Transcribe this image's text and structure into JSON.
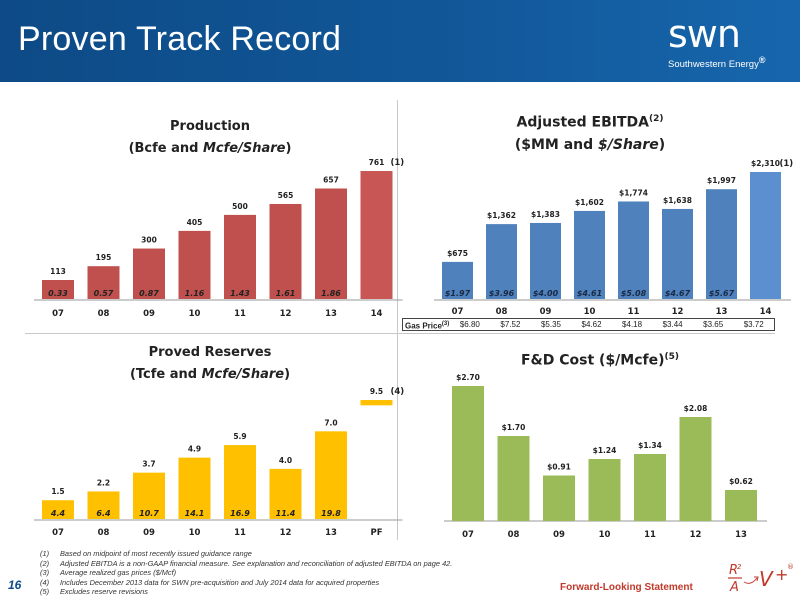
{
  "header": {
    "title": "Proven Track Record"
  },
  "logo": {
    "mark": "swn",
    "sub": "Southwestern Energy",
    "reg": "®"
  },
  "charts": {
    "production": {
      "title_l1": "Production",
      "title_l2_pre": "(Bcfe and ",
      "title_l2_em": "Mcfe/Share",
      "title_l2_post": ")"
    },
    "ebitda": {
      "title_l1": "Adjusted EBITDA",
      "title_l1_sup": "(2)",
      "title_l2_pre": "($MM and ",
      "title_l2_em": "$/Share",
      "title_l2_post": ")"
    },
    "reserves": {
      "title_l1": "Proved Reserves",
      "title_l2_pre": "(Tcfe and ",
      "title_l2_em": "Mcfe/Share",
      "title_l2_post": ")"
    },
    "fd": {
      "title": "F&D Cost ($/Mcfe)",
      "title_sup": "(5)"
    }
  },
  "gas_price": {
    "label": "Gas Price",
    "label_sup": "(3)",
    "values": [
      "$6.80",
      "$7.52",
      "$5.35",
      "$4.62",
      "$4.18",
      "$3.44",
      "$3.65",
      "$3.72"
    ]
  },
  "footnotes": [
    {
      "num": "(1)",
      "text": "Based on midpoint of most recently issued guidance range"
    },
    {
      "num": "(2)",
      "text": "Adjusted EBITDA is a non-GAAP financial measure. See explanation and reconciliation of adjusted EBITDA on page 42."
    },
    {
      "num": "(3)",
      "text": "Average realized gas prices ($/Mcf)"
    },
    {
      "num": "(4)",
      "text": "Includes December 2013 data for SWN pre-acquisition and July 2014 data for acquired properties"
    },
    {
      "num": "(5)",
      "text": "Excludes reserve revisions"
    }
  ],
  "page_number": "16",
  "forward_looking": "Forward-Looking Statement",
  "chart_data": [
    {
      "id": "production",
      "type": "bar",
      "title": "Production (Bcfe and Mcfe/Share)",
      "categories": [
        "07",
        "08",
        "09",
        "10",
        "11",
        "12",
        "13",
        "14"
      ],
      "values": [
        113,
        195,
        300,
        405,
        500,
        565,
        657,
        761
      ],
      "value_labels": [
        "113",
        "195",
        "300",
        "405",
        "500",
        "565",
        "657",
        "761"
      ],
      "inner_labels": [
        "0.33",
        "0.57",
        "0.87",
        "1.16",
        "1.43",
        "1.61",
        "1.86",
        ""
      ],
      "annotations": {
        "7": "(1)"
      },
      "color": "#c0504d",
      "ylim": [
        0,
        800
      ]
    },
    {
      "id": "ebitda",
      "type": "bar",
      "title": "Adjusted EBITDA ($MM and $/Share)",
      "categories": [
        "07",
        "08",
        "09",
        "10",
        "11",
        "12",
        "13",
        "14"
      ],
      "values": [
        675,
        1362,
        1383,
        1602,
        1774,
        1638,
        1997,
        2310
      ],
      "value_labels": [
        "$675",
        "$1,362",
        "$1,383",
        "$1,602",
        "$1,774",
        "$1,638",
        "$1,997",
        "$2,310"
      ],
      "inner_labels": [
        "$1.97",
        "$3.96",
        "$4.00",
        "$4.61",
        "$5.08",
        "$4.67",
        "$5.67",
        ""
      ],
      "annotations": {
        "7": "(1)"
      },
      "color": "#4f81bd",
      "ylim": [
        0,
        2400
      ]
    },
    {
      "id": "reserves",
      "type": "bar",
      "title": "Proved Reserves (Tcfe and Mcfe/Share)",
      "categories": [
        "07",
        "08",
        "09",
        "10",
        "11",
        "12",
        "13",
        "PF"
      ],
      "values": [
        1.5,
        2.2,
        3.7,
        4.9,
        5.9,
        4.0,
        7.0,
        9.5
      ],
      "value_labels": [
        "1.5",
        "2.2",
        "3.7",
        "4.9",
        "5.9",
        "4.0",
        "7.0",
        "9.5"
      ],
      "inner_labels": [
        "4.4",
        "6.4",
        "10.7",
        "14.1",
        "16.9",
        "11.4",
        "19.8",
        ""
      ],
      "annotations": {
        "7": "(4)"
      },
      "pf_base": 7.0,
      "color": "#ffc000",
      "ylim": [
        0,
        10
      ]
    },
    {
      "id": "fd",
      "type": "bar",
      "title": "F&D Cost ($/Mcfe)",
      "categories": [
        "07",
        "08",
        "09",
        "10",
        "11",
        "12",
        "13"
      ],
      "values": [
        2.7,
        1.7,
        0.91,
        1.24,
        1.34,
        2.08,
        0.62
      ],
      "value_labels": [
        "$2.70",
        "$1.70",
        "$0.91",
        "$1.24",
        "$1.34",
        "$2.08",
        "$0.62"
      ],
      "color": "#9bbb59",
      "ylim": [
        0,
        2.8
      ]
    }
  ]
}
